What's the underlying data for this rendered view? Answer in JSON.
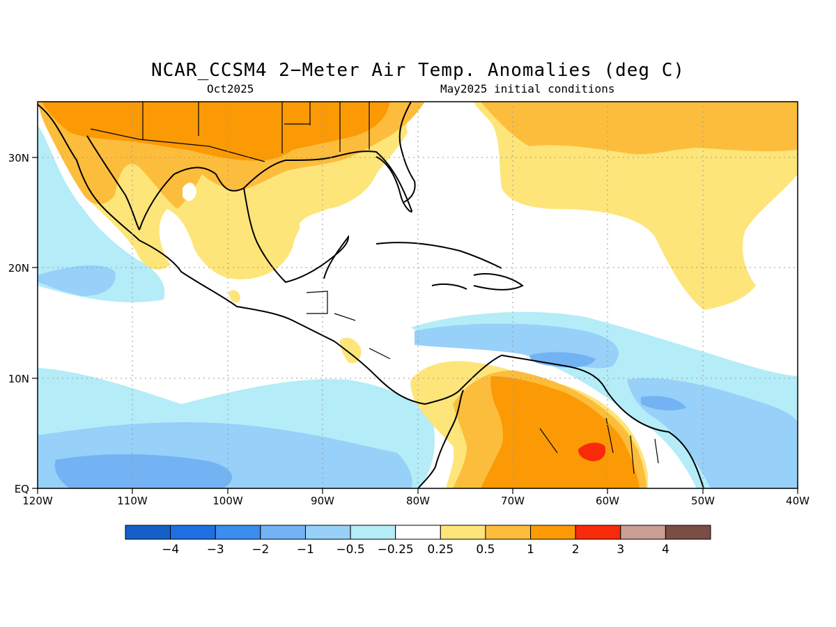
{
  "title": "NCAR_CCSM4 2−Meter Air Temp. Anomalies (deg C)",
  "subtitle_left": "Oct2025",
  "subtitle_right": "May2025 initial conditions",
  "x_ticks": [
    "120W",
    "110W",
    "100W",
    "90W",
    "80W",
    "70W",
    "60W",
    "50W",
    "40W"
  ],
  "y_ticks": [
    "EQ",
    "10N",
    "20N",
    "30N"
  ],
  "map_extent": {
    "lon_min": -120,
    "lon_max": -40,
    "lat_min": 0,
    "lat_max": 35
  },
  "colorbar": {
    "labels": [
      "−4",
      "−3",
      "−2",
      "−1",
      "−0.5",
      "−0.25",
      "0.25",
      "0.5",
      "1",
      "2",
      "3",
      "4"
    ],
    "colors": [
      "#1560c9",
      "#1f6fe0",
      "#3b8df0",
      "#73b3f3",
      "#97d0f8",
      "#b4ecf8",
      "#ffffff",
      "#fde57a",
      "#fdbd3c",
      "#fb9a05",
      "#f92a0a",
      "#c99e94",
      "#7a4e45"
    ]
  }
}
